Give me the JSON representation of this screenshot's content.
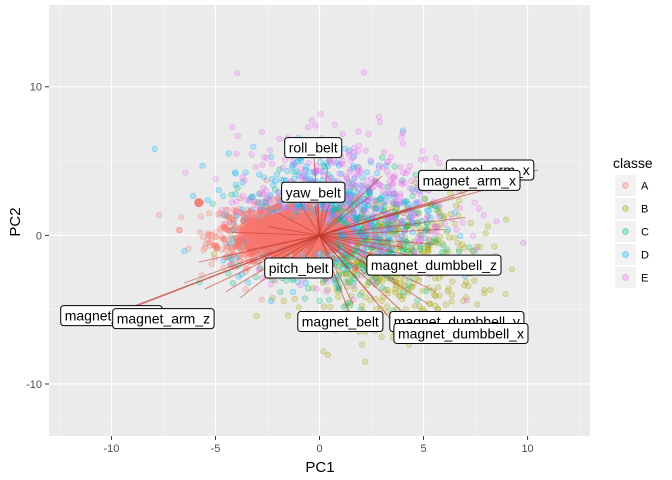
{
  "chart_data": {
    "type": "scatter",
    "title": "",
    "xlabel": "PC1",
    "ylabel": "PC2",
    "xlim": [
      -13,
      13
    ],
    "ylim": [
      -13.5,
      15.5
    ],
    "xticks": [
      -10,
      -5,
      0,
      5,
      10
    ],
    "yticks": [
      -10,
      0,
      10
    ],
    "xtick_labels": [
      "-10",
      "-5",
      "0",
      "5",
      "10"
    ],
    "ytick_labels": [
      "-10",
      "0",
      "10"
    ],
    "grid": true,
    "legend": {
      "title": "classe",
      "position": "right",
      "entries": [
        {
          "label": "A",
          "color": "#F8766D"
        },
        {
          "label": "B",
          "color": "#A3A500"
        },
        {
          "label": "C",
          "color": "#00BF7D"
        },
        {
          "label": "D",
          "color": "#00B0F6"
        },
        {
          "label": "E",
          "color": "#E76BF3"
        }
      ]
    },
    "series": [
      {
        "name": "A",
        "color": "#F8766D",
        "center": [
          -1.8,
          0.1
        ],
        "spread": [
          1.7,
          1.1
        ],
        "count": 700
      },
      {
        "name": "B",
        "color": "#A3A500",
        "center": [
          3.2,
          -1.6
        ],
        "spread": [
          2.2,
          2.2
        ],
        "count": 500
      },
      {
        "name": "C",
        "color": "#00BF7D",
        "center": [
          1.2,
          -0.3
        ],
        "spread": [
          2.1,
          1.9
        ],
        "count": 450
      },
      {
        "name": "D",
        "color": "#00B0F6",
        "center": [
          0.2,
          1.6
        ],
        "spread": [
          2.4,
          2.0
        ],
        "count": 450
      },
      {
        "name": "E",
        "color": "#E76BF3",
        "center": [
          1.2,
          2.0
        ],
        "spread": [
          2.6,
          2.5
        ],
        "count": 500
      }
    ],
    "outlier": {
      "x": -5.8,
      "y": 2.2,
      "class": "A"
    },
    "vector_color": "#C0392B",
    "labeled_vectors": [
      {
        "label": "roll_belt",
        "end": [
          -0.3,
          5.9
        ],
        "text_pos": [
          -0.3,
          5.9
        ]
      },
      {
        "label": "yaw_belt",
        "end": [
          -0.3,
          2.9
        ],
        "text_pos": [
          -0.3,
          2.9
        ]
      },
      {
        "label": "accel_arm_x",
        "end": [
          10.5,
          4.4
        ],
        "text_pos": [
          8.2,
          4.4
        ]
      },
      {
        "label": "magnet_arm_x",
        "end": [
          9.6,
          3.7
        ],
        "text_pos": [
          7.2,
          3.7
        ]
      },
      {
        "label": "pitch_belt",
        "end": [
          -1.0,
          -2.2
        ],
        "text_pos": [
          -1.0,
          -2.2
        ]
      },
      {
        "label": "magnet_dumbbell_z",
        "end": [
          3.9,
          -2.0
        ],
        "text_pos": [
          5.5,
          -2.0
        ]
      },
      {
        "label": "magnet_arm_y",
        "end": [
          -10.0,
          -5.4
        ],
        "text_pos": [
          -10.0,
          -5.4
        ]
      },
      {
        "label": "magnet_arm_z",
        "end": [
          -10.5,
          -5.6
        ],
        "text_pos": [
          -7.5,
          -5.6
        ]
      },
      {
        "label": "magnet_belt",
        "end": [
          1.6,
          -5.8
        ],
        "text_pos": [
          1.0,
          -5.8
        ]
      },
      {
        "label": "magnet_dumbbell_y",
        "end": [
          4.5,
          -5.8
        ],
        "text_pos": [
          6.6,
          -5.8
        ]
      },
      {
        "label": "magnet_dumbbell_x",
        "end": [
          4.0,
          -6.6
        ],
        "text_pos": [
          6.8,
          -6.6
        ]
      }
    ],
    "unlabeled_vectors": [
      [
        -6.5,
        -3.2
      ],
      [
        -5.5,
        -3.6
      ],
      [
        -4.5,
        -3.8
      ],
      [
        -3.8,
        -4.2
      ],
      [
        -5.8,
        -1.8
      ],
      [
        -3.5,
        -1.0
      ],
      [
        -2.5,
        0.6
      ],
      [
        -2.0,
        1.5
      ],
      [
        -1.2,
        2.8
      ],
      [
        0.8,
        3.6
      ],
      [
        2.4,
        2.6
      ],
      [
        3.6,
        1.8
      ],
      [
        5.2,
        2.1
      ],
      [
        6.5,
        2.6
      ],
      [
        7.0,
        1.2
      ],
      [
        6.0,
        0.4
      ],
      [
        5.5,
        -0.6
      ],
      [
        4.8,
        -1.5
      ],
      [
        3.6,
        -3.0
      ],
      [
        2.6,
        -4.2
      ],
      [
        1.6,
        -4.6
      ],
      [
        5.6,
        -3.8
      ],
      [
        5.2,
        -4.6
      ],
      [
        2.2,
        -2.6
      ],
      [
        1.0,
        -1.6
      ],
      [
        -0.6,
        -0.9
      ],
      [
        -1.6,
        -1.4
      ],
      [
        0.4,
        4.6
      ],
      [
        -0.1,
        3.6
      ],
      [
        3.0,
        4.0
      ],
      [
        -4.2,
        0.2
      ],
      [
        4.0,
        -0.8
      ]
    ]
  }
}
